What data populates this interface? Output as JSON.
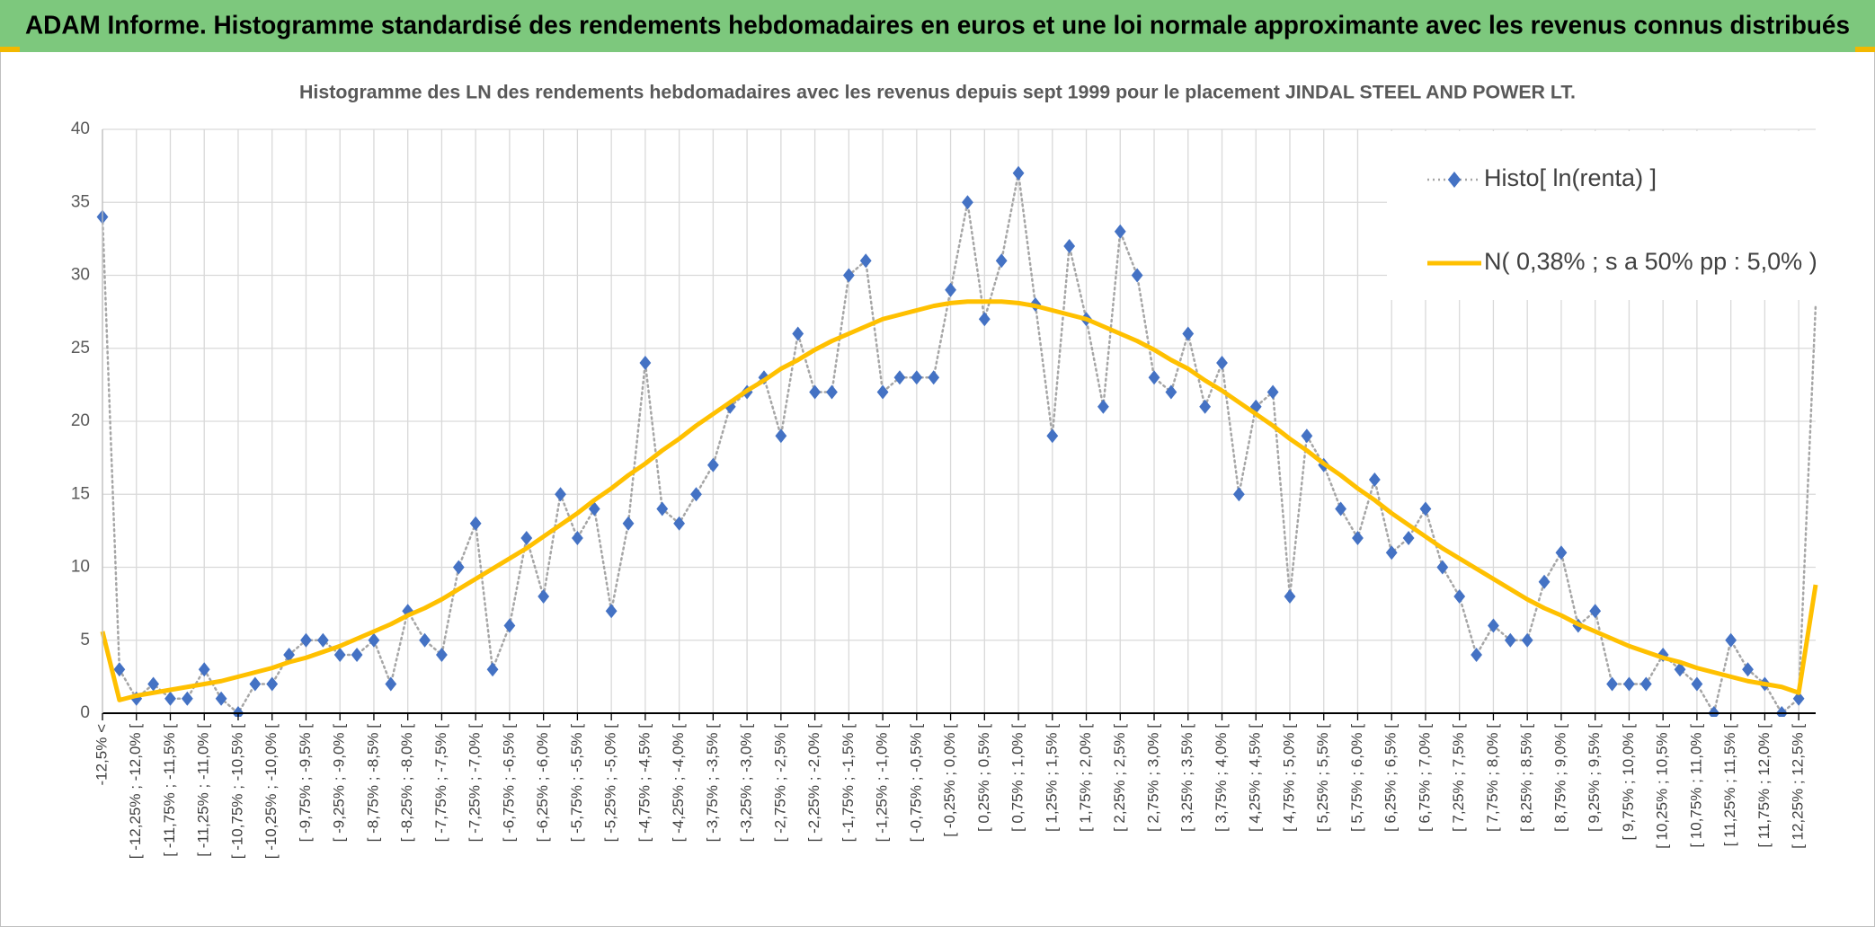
{
  "chart_data": {
    "type": "line",
    "header": "ADAM Informe. Histogramme standardisé des rendements hebdomadaires en euros et une loi normale approximante avec les revenus connus distribués",
    "title": "Histogramme des LN des rendements hebdomadaires avec les revenus depuis sept 1999 pour le placement JINDAL STEEL AND POWER LT.",
    "categories": [
      "-12,5% <",
      null,
      "[ -12,25% ; -12,0% [",
      null,
      "[ -11,75% ; -11,5% [",
      null,
      "[ -11,25% ; -11,0% [",
      null,
      "[ -10,75% ; -10,5% [",
      null,
      "[ -10,25% ; -10,0% [",
      null,
      "[ -9,75% ; -9,5% [",
      null,
      "[ -9,25% ; -9,0% [",
      null,
      "[ -8,75% ; -8,5% [",
      null,
      "[ -8,25% ; -8,0% [",
      null,
      "[ -7,75% ; -7,5% [",
      null,
      "[ -7,25% ; -7,0% [",
      null,
      "[ -6,75% ; -6,5% [",
      null,
      "[ -6,25% ; -6,0% [",
      null,
      "[ -5,75% ; -5,5% [",
      null,
      "[ -5,25% ; -5,0% [",
      null,
      "[ -4,75% ; -4,5% [",
      null,
      "[ -4,25% ; -4,0% [",
      null,
      "[ -3,75% ; -3,5% [",
      null,
      "[ -3,25% ; -3,0% [",
      null,
      "[ -2,75% ; -2,5% [",
      null,
      "[ -2,25% ; -2,0% [",
      null,
      "[ -1,75% ; -1,5% [",
      null,
      "[ -1,25% ; -1,0% [",
      null,
      "[ -0,75% ; -0,5% [",
      null,
      "[ -0,25% ; 0,0% [",
      null,
      "[ 0,25% ; 0,5% [",
      null,
      "[ 0,75% ; 1,0% [",
      null,
      "[ 1,25% ; 1,5% [",
      null,
      "[ 1,75% ; 2,0% [",
      null,
      "[ 2,25% ; 2,5% [",
      null,
      "[ 2,75% ; 3,0% [",
      null,
      "[ 3,25% ; 3,5% [",
      null,
      "[ 3,75% ; 4,0% [",
      null,
      "[ 4,25% ; 4,5% [",
      null,
      "[ 4,75% ; 5,0% [",
      null,
      "[ 5,25% ; 5,5% [",
      null,
      "[ 5,75% ; 6,0% [",
      null,
      "[ 6,25% ; 6,5% [",
      null,
      "[ 6,75% ; 7,0% [",
      null,
      "[ 7,25% ; 7,5% [",
      null,
      "[ 7,75% ; 8,0% [",
      null,
      "[ 8,25% ; 8,5% [",
      null,
      "[ 8,75% ; 9,0% [",
      null,
      "[ 9,25% ; 9,5% [",
      null,
      "[ 9,75% ; 10,0% [",
      null,
      "[ 10,25% ; 10,5% [",
      null,
      "[ 10,75% ; 11,0% [",
      null,
      "[ 11,25% ; 11,5% [",
      null,
      "[ 11,75% ; 12,0% [",
      null,
      "[ 12,25% ; 12,5% [",
      null
    ],
    "series": [
      {
        "name": "Histo[ ln(renta) ]",
        "color": "#4472c4",
        "line_color": "#a6a6a6",
        "values": [
          34,
          3,
          1,
          2,
          1,
          1,
          3,
          1,
          0,
          2,
          2,
          4,
          5,
          5,
          4,
          4,
          5,
          2,
          7,
          5,
          4,
          10,
          13,
          3,
          6,
          12,
          8,
          15,
          12,
          14,
          7,
          13,
          24,
          14,
          13,
          15,
          17,
          21,
          22,
          23,
          19,
          26,
          22,
          22,
          30,
          31,
          22,
          23,
          23,
          23,
          29,
          35,
          27,
          31,
          37,
          28,
          19,
          32,
          27,
          21,
          33,
          30,
          23,
          22,
          26,
          21,
          24,
          15,
          21,
          22,
          8,
          19,
          17,
          14,
          12,
          16,
          11,
          12,
          14,
          10,
          8,
          4,
          6,
          5,
          5,
          9,
          11,
          6,
          7,
          2,
          2,
          2,
          4,
          3,
          2,
          0,
          5,
          3,
          2,
          0,
          1,
          28
        ]
      },
      {
        "name": "N( 0,38% ; s a 50% pp : 5,0% )",
        "color": "#ffc000",
        "values": [
          5.6,
          0.9,
          1.2,
          1.4,
          1.6,
          1.8,
          2.0,
          2.2,
          2.5,
          2.8,
          3.1,
          3.5,
          3.8,
          4.2,
          4.6,
          5.1,
          5.6,
          6.1,
          6.7,
          7.2,
          7.8,
          8.5,
          9.2,
          9.9,
          10.6,
          11.3,
          12.1,
          12.9,
          13.7,
          14.6,
          15.4,
          16.3,
          17.1,
          18.0,
          18.8,
          19.7,
          20.5,
          21.3,
          22.1,
          22.8,
          23.6,
          24.2,
          24.9,
          25.5,
          26.0,
          26.5,
          27.0,
          27.3,
          27.6,
          27.9,
          28.1,
          28.2,
          28.2,
          28.2,
          28.1,
          27.9,
          27.6,
          27.3,
          27.0,
          26.5,
          26.0,
          25.5,
          24.9,
          24.2,
          23.6,
          22.8,
          22.1,
          21.3,
          20.5,
          19.7,
          18.8,
          18.0,
          17.1,
          16.3,
          15.4,
          14.6,
          13.7,
          12.9,
          12.1,
          11.3,
          10.6,
          9.9,
          9.2,
          8.5,
          7.8,
          7.2,
          6.7,
          6.1,
          5.6,
          5.1,
          4.6,
          4.2,
          3.8,
          3.5,
          3.1,
          2.8,
          2.5,
          2.2,
          2.0,
          1.8,
          1.4,
          8.8
        ]
      }
    ],
    "ylim": [
      0,
      40
    ],
    "yticks": [
      0,
      5,
      10,
      15,
      20,
      25,
      30,
      35,
      40
    ],
    "grid": true,
    "legend": "upper right"
  }
}
